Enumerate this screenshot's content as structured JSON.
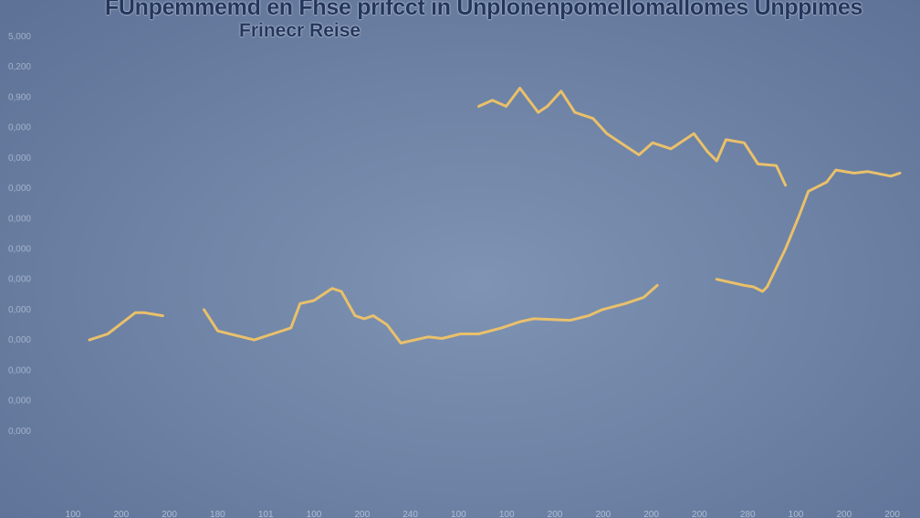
{
  "chart_data": {
    "type": "line",
    "title": "FUnpemmemd en Fhse prifcct in Unplonenpomellomallomes Unppimes",
    "subtitle": "Frinecr Reise",
    "colors": {
      "line": "#e9c06b",
      "background": "#7287a9",
      "text": "#24365c"
    },
    "grid": false,
    "legend": "none",
    "ylim": [
      0,
      14
    ],
    "y_ticks": [
      {
        "label": "5,000",
        "value": 14
      },
      {
        "label": "0,200",
        "value": 13
      },
      {
        "label": "0,900",
        "value": 12
      },
      {
        "label": "0,000",
        "value": 11
      },
      {
        "label": "0,000",
        "value": 10
      },
      {
        "label": "0,000",
        "value": 9
      },
      {
        "label": "0,000",
        "value": 8
      },
      {
        "label": "0,000",
        "value": 7
      },
      {
        "label": "0,000",
        "value": 6
      },
      {
        "label": "0,000",
        "value": 5
      },
      {
        "label": "0,000",
        "value": 4
      },
      {
        "label": "0,000",
        "value": 3
      },
      {
        "label": "0,000",
        "value": 2
      },
      {
        "label": "0,000",
        "value": 1
      }
    ],
    "xlim": [
      0,
      18
    ],
    "x_ticks": [
      {
        "label": "100",
        "value": 0
      },
      {
        "label": "200",
        "value": 1
      },
      {
        "label": "200",
        "value": 2
      },
      {
        "label": "180",
        "value": 3
      },
      {
        "label": "101",
        "value": 4
      },
      {
        "label": "100",
        "value": 5
      },
      {
        "label": "200",
        "value": 6
      },
      {
        "label": "240",
        "value": 7
      },
      {
        "label": "100",
        "value": 8
      },
      {
        "label": "100",
        "value": 9
      },
      {
        "label": "200",
        "value": 10
      },
      {
        "label": "200",
        "value": 11
      },
      {
        "label": "200",
        "value": 12
      },
      {
        "label": "200",
        "value": 13
      },
      {
        "label": "280",
        "value": 14
      },
      {
        "label": "100",
        "value": 15
      },
      {
        "label": "200",
        "value": 16
      },
      {
        "label": "200",
        "value": 17
      }
    ],
    "segments": [
      [
        [
          0.3,
          4.0
        ],
        [
          0.7,
          4.2
        ],
        [
          1.3,
          4.9
        ],
        [
          1.5,
          4.9
        ],
        [
          1.9,
          4.8
        ]
      ],
      [
        [
          2.8,
          5.0
        ],
        [
          3.1,
          4.3
        ],
        [
          3.9,
          4.0
        ],
        [
          4.3,
          4.2
        ],
        [
          4.7,
          4.4
        ],
        [
          4.9,
          5.2
        ],
        [
          5.2,
          5.3
        ],
        [
          5.6,
          5.7
        ],
        [
          5.8,
          5.6
        ],
        [
          6.1,
          4.8
        ],
        [
          6.3,
          4.7
        ],
        [
          6.5,
          4.8
        ],
        [
          6.8,
          4.5
        ],
        [
          7.1,
          3.9
        ],
        [
          7.4,
          4.0
        ],
        [
          7.7,
          4.1
        ],
        [
          8.0,
          4.05
        ],
        [
          8.4,
          4.2
        ],
        [
          8.8,
          4.2
        ],
        [
          9.3,
          4.4
        ],
        [
          9.7,
          4.6
        ],
        [
          10.0,
          4.7
        ],
        [
          10.8,
          4.65
        ],
        [
          11.2,
          4.8
        ],
        [
          11.5,
          5.0
        ],
        [
          12.0,
          5.2
        ],
        [
          12.4,
          5.4
        ],
        [
          12.7,
          5.8
        ]
      ],
      [
        [
          8.8,
          11.7
        ],
        [
          9.1,
          11.9
        ],
        [
          9.4,
          11.7
        ],
        [
          9.7,
          12.3
        ],
        [
          10.1,
          11.5
        ],
        [
          10.3,
          11.7
        ],
        [
          10.6,
          12.2
        ],
        [
          10.9,
          11.5
        ],
        [
          11.3,
          11.3
        ],
        [
          11.6,
          10.8
        ],
        [
          12.0,
          10.4
        ],
        [
          12.3,
          10.1
        ],
        [
          12.6,
          10.5
        ],
        [
          13.0,
          10.3
        ],
        [
          13.5,
          10.8
        ],
        [
          13.8,
          10.2
        ],
        [
          14.0,
          9.9
        ],
        [
          14.2,
          10.6
        ],
        [
          14.6,
          10.5
        ],
        [
          14.9,
          9.8
        ],
        [
          15.3,
          9.75
        ],
        [
          15.5,
          9.1
        ]
      ],
      [
        [
          14.0,
          6.0
        ],
        [
          14.6,
          5.8
        ],
        [
          14.8,
          5.75
        ],
        [
          15.0,
          5.6
        ],
        [
          15.1,
          5.75
        ],
        [
          15.5,
          7.0
        ],
        [
          15.8,
          8.1
        ],
        [
          16.0,
          8.9
        ],
        [
          16.4,
          9.2
        ],
        [
          16.6,
          9.6
        ],
        [
          17.0,
          9.5
        ],
        [
          17.3,
          9.55
        ],
        [
          17.8,
          9.4
        ],
        [
          18.0,
          9.5
        ]
      ]
    ]
  }
}
